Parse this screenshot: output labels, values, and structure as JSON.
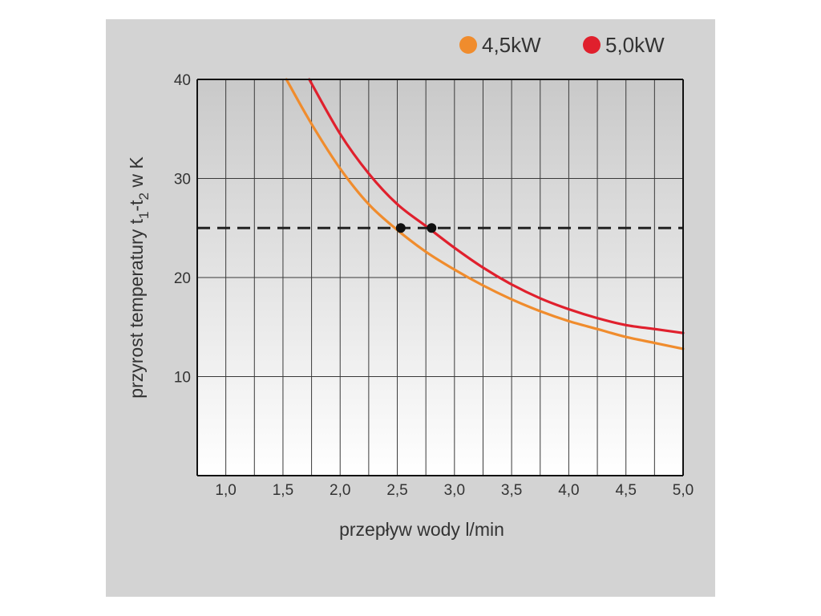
{
  "chart_data": {
    "type": "line",
    "title": "",
    "xlabel": "przepływ wody l/min",
    "ylabel_main": "przyrost temperatury t",
    "ylabel_sub1": "1",
    "ylabel_mid": "-t",
    "ylabel_sub2": "2",
    "ylabel_tail": " w K",
    "xlim": [
      0.75,
      5.0
    ],
    "ylim": [
      0,
      40
    ],
    "grid": true,
    "legend_position": "top-right",
    "x_ticks": [
      "1,0",
      "1,5",
      "2,0",
      "2,5",
      "3,0",
      "3,5",
      "4,0",
      "4,5",
      "5,0"
    ],
    "x_tick_values": [
      1.0,
      1.5,
      2.0,
      2.5,
      3.0,
      3.5,
      4.0,
      4.5,
      5.0
    ],
    "y_ticks": [
      "10",
      "20",
      "30",
      "40"
    ],
    "y_tick_values": [
      10,
      20,
      30,
      40
    ],
    "series": [
      {
        "name": "4,5kW",
        "color": "#f08c2d",
        "x": [
          1.53,
          1.75,
          2.0,
          2.25,
          2.5,
          2.75,
          3.0,
          3.25,
          3.5,
          3.75,
          4.0,
          4.25,
          4.5,
          4.75,
          5.0
        ],
        "y": [
          40.0,
          35.5,
          31.0,
          27.4,
          24.8,
          22.6,
          20.8,
          19.2,
          17.8,
          16.6,
          15.6,
          14.8,
          14.0,
          13.4,
          12.8
        ]
      },
      {
        "name": "5,0kW",
        "color": "#e0202d",
        "x": [
          1.73,
          2.0,
          2.25,
          2.5,
          2.75,
          3.0,
          3.25,
          3.5,
          3.75,
          4.0,
          4.25,
          4.5,
          4.75,
          5.0
        ],
        "y": [
          40.0,
          34.5,
          30.5,
          27.4,
          25.2,
          23.0,
          21.0,
          19.3,
          17.9,
          16.8,
          15.9,
          15.2,
          14.8,
          14.4
        ]
      }
    ],
    "reference_line": {
      "y": 25,
      "style": "dashed",
      "color": "#222222"
    },
    "markers": [
      {
        "x": 2.53,
        "y": 25
      },
      {
        "x": 2.8,
        "y": 25
      }
    ]
  }
}
